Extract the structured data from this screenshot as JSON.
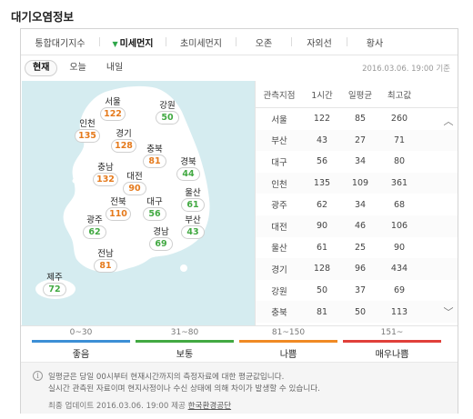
{
  "title": "대기오염정보",
  "tabs": [
    {
      "label": "통합대기지수"
    },
    {
      "label": "미세먼지"
    },
    {
      "label": "초미세먼지"
    },
    {
      "label": "오존"
    },
    {
      "label": "자외선"
    },
    {
      "label": "황사"
    }
  ],
  "days": [
    {
      "label": "현재"
    },
    {
      "label": "오늘"
    },
    {
      "label": "내일"
    }
  ],
  "timestamp": "2016.03.06. 19:00 기준",
  "map": {
    "cities": [
      {
        "name": "서울",
        "value": "122",
        "level": "bad"
      },
      {
        "name": "강원",
        "value": "50",
        "level": "normal"
      },
      {
        "name": "인천",
        "value": "135",
        "level": "bad"
      },
      {
        "name": "경기",
        "value": "128",
        "level": "bad"
      },
      {
        "name": "충북",
        "value": "81",
        "level": "bad"
      },
      {
        "name": "충남",
        "value": "132",
        "level": "bad"
      },
      {
        "name": "대전",
        "value": "90",
        "level": "bad"
      },
      {
        "name": "경북",
        "value": "44",
        "level": "normal"
      },
      {
        "name": "전북",
        "value": "110",
        "level": "bad"
      },
      {
        "name": "대구",
        "value": "56",
        "level": "normal"
      },
      {
        "name": "울산",
        "value": "61",
        "level": "normal"
      },
      {
        "name": "광주",
        "value": "62",
        "level": "normal"
      },
      {
        "name": "부산",
        "value": "43",
        "level": "normal"
      },
      {
        "name": "경남",
        "value": "69",
        "level": "normal"
      },
      {
        "name": "전남",
        "value": "81",
        "level": "bad"
      },
      {
        "name": "제주",
        "value": "72",
        "level": "normal"
      }
    ]
  },
  "table": {
    "headers": [
      "관측지점",
      "1시간",
      "일평균",
      "최고값"
    ],
    "rows": [
      [
        "서울",
        "122",
        "85",
        "260"
      ],
      [
        "부산",
        "43",
        "27",
        "71"
      ],
      [
        "대구",
        "56",
        "34",
        "80"
      ],
      [
        "인천",
        "135",
        "109",
        "361"
      ],
      [
        "광주",
        "62",
        "34",
        "68"
      ],
      [
        "대전",
        "90",
        "46",
        "106"
      ],
      [
        "울산",
        "61",
        "25",
        "90"
      ],
      [
        "경기",
        "128",
        "96",
        "434"
      ],
      [
        "강원",
        "50",
        "37",
        "69"
      ],
      [
        "충북",
        "81",
        "50",
        "113"
      ]
    ],
    "scroll_up_icon": "chevron-up-icon",
    "scroll_down_icon": "chevron-down-icon"
  },
  "legend": [
    {
      "range": "0~30",
      "label": "좋음",
      "color": "#3c8fd6"
    },
    {
      "range": "31~80",
      "label": "보통",
      "color": "#42a942"
    },
    {
      "range": "81~150",
      "label": "나쁨",
      "color": "#f08a24"
    },
    {
      "range": "151~",
      "label": "매우나쁨",
      "color": "#e0403a"
    }
  ],
  "notes": {
    "icon": "info-icon",
    "line1": "일평균은 당일 00시부터 현재시간까지의 측정자료에 대한 평균값입니다.",
    "line2": "실시간 관측된 자료이며 현지사정이나 수신 상태에 의해 차이가 발생할 수 있습니다.",
    "update_prefix": "최종 업데이트 2016.03.06. 19:00 제공",
    "provider": "한국환경공단"
  },
  "colors": {
    "good": "#3c8fd6",
    "normal": "#42a942",
    "bad": "#e57a1c",
    "verybad": "#d9302c",
    "sea": "#d5ecf0",
    "land": "#ffffff"
  }
}
